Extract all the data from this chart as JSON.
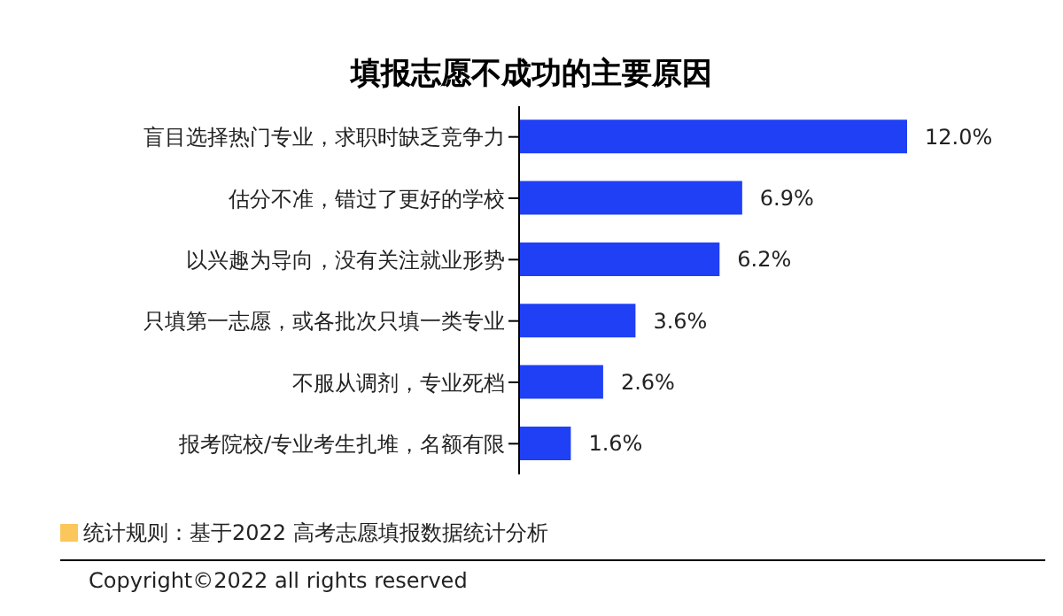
{
  "chart_data": {
    "type": "bar",
    "orientation": "horizontal",
    "title": "填报志愿不成功的主要原因",
    "categories": [
      "盲目选择热门专业，求职时缺乏竞争力",
      "估分不准，错过了更好的学校",
      "以兴趣为导向，没有关注就业形势",
      "只填第一志愿，或各批次只填一类专业",
      "不服从调剂，专业死档",
      "报考院校/专业考生扎堆，名额有限"
    ],
    "values": [
      12.0,
      6.9,
      6.2,
      3.6,
      2.6,
      1.6
    ],
    "value_labels": [
      "12.0%",
      "6.9%",
      "6.2%",
      "3.6%",
      "2.6%",
      "1.6%"
    ],
    "color": "#1f40f5",
    "annotations": [
      "统计规则：基于2022 高考志愿填报数据统计分析",
      "Copyright©2022 all rights reserved"
    ]
  }
}
